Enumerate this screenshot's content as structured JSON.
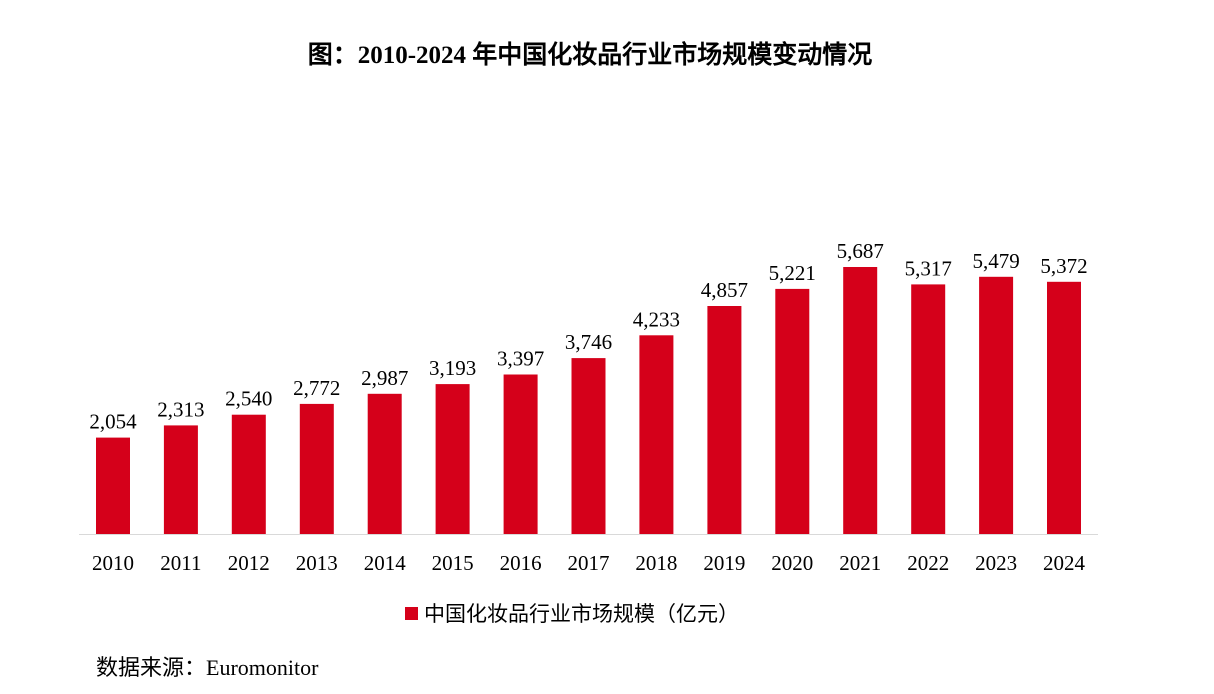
{
  "page": {
    "source_text": "数据来源：Euromonitor"
  },
  "colors": {
    "bar": "#D5001A",
    "axis": "#D9D9D9",
    "text": "#000000"
  },
  "chart_data": {
    "type": "bar",
    "title": "图：2010-2024 年中国化妆品行业市场规模变动情况",
    "xlabel": "",
    "ylabel": "",
    "ylim": [
      0,
      5687
    ],
    "grid": false,
    "legend_position": "bottom",
    "categories": [
      "2010",
      "2011",
      "2012",
      "2013",
      "2014",
      "2015",
      "2016",
      "2017",
      "2018",
      "2019",
      "2020",
      "2021",
      "2022",
      "2023",
      "2024"
    ],
    "series": [
      {
        "name": "中国化妆品行业市场规模（亿元）",
        "values": [
          2054,
          2313,
          2540,
          2772,
          2987,
          3193,
          3397,
          3746,
          4233,
          4857,
          5221,
          5687,
          5317,
          5479,
          5372
        ],
        "labels": [
          "2,054",
          "2,313",
          "2,540",
          "2,772",
          "2,987",
          "3,193",
          "3,397",
          "3,746",
          "4,233",
          "4,857",
          "5,221",
          "5,687",
          "5,317",
          "5,479",
          "5,372"
        ]
      }
    ]
  }
}
